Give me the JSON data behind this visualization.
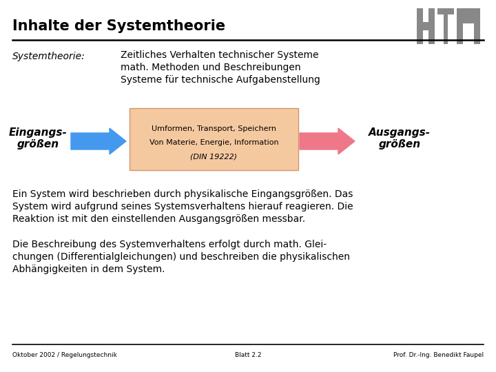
{
  "title": "Inhalte der Systemtheorie",
  "bg_color": "#ffffff",
  "title_color": "#000000",
  "title_fontsize": 15,
  "header_line_color": "#000000",
  "systemtheorie_label": "Systemtheorie:",
  "systemtheorie_items": [
    "Zeitliches Verhalten technischer Systeme",
    "math. Methoden und Beschreibungen",
    "Systeme für technische Aufgabenstellung"
  ],
  "eingang_label": "Eingangs-\ngrößen",
  "ausgang_label": "Ausgangs-\ngrößen",
  "box_text_line1": "Umformen, Transport, Speichern",
  "box_text_line2": "Von Materie, Energie, Information",
  "box_text_line3": "(DIN 19222)",
  "box_color": "#F5C9A0",
  "box_edge_color": "#D4956A",
  "arrow_blue": "#4499EE",
  "arrow_red": "#EE7788",
  "para1_lines": [
    "Ein System wird beschrieben durch physikalische Eingangsgrößen. Das",
    "System wird aufgrund seines Systemsverhaltens hierauf reagieren. Die",
    "Reaktion ist mit den einstellenden Ausgangsgrößen messbar."
  ],
  "para2_lines": [
    "Die Beschreibung des Systemverhaltens erfolgt durch math. Glei-",
    "chungen (Differentialgleichungen) und beschreiben die physikalischen",
    "Abhängigkeiten in dem System."
  ],
  "footer_left": "Oktober 2002 / Regelungstechnik",
  "footer_center": "Blatt 2.2",
  "footer_right": "Prof. Dr.-Ing. Benedikt Faupel",
  "footer_line_color": "#000000",
  "logo_color": "#888888"
}
